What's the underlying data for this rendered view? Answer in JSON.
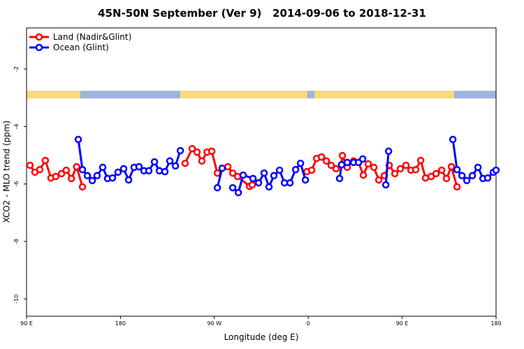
{
  "chart_data": {
    "type": "line",
    "title": "45N-50N September (Ver 9)   2014-09-06 to 2018-12-31",
    "xlabel": "Longitude (deg E)",
    "ylabel": "XCO2 - MLO trend (ppm)",
    "xlim": [
      90,
      540
    ],
    "xticks": [
      {
        "value": 90,
        "label": "90 E"
      },
      {
        "value": 180,
        "label": "180"
      },
      {
        "value": 270,
        "label": "90 W"
      },
      {
        "value": 360,
        "label": "0"
      },
      {
        "value": 450,
        "label": "90 E"
      },
      {
        "value": 540,
        "label": "180"
      }
    ],
    "ylim": [
      -10.6,
      -0.57
    ],
    "yticks": [
      -2,
      -4,
      -6,
      -8,
      -10
    ],
    "legend": "top-left",
    "series": [
      {
        "name": "Land (Nadir&Glint)",
        "color": "#ff0000",
        "x": [
          93.3,
          98,
          102.7,
          108,
          113.4,
          118,
          123.5,
          128,
          133,
          138,
          143.6,
          null,
          242,
          248.7,
          253.4,
          258,
          263,
          267.5,
          272.9,
          null,
          282.9,
          287.6,
          292.3,
          303.7,
          306.3,
          null,
          358.6,
          363.3,
          368,
          372.7,
          377.4,
          382,
          386.7,
          392,
          392.7,
          397.4,
          403.5,
          408.2,
          412.8,
          417.5,
          422.9,
          427.6,
          433,
          437.6,
          443,
          448.3,
          453.7,
          458.4,
          463,
          467.8,
          472.4,
          477.8,
          482.5,
          487.9,
          492.5,
          497.2,
          502.6
        ],
        "values": [
          -5.35,
          -5.59,
          -5.5,
          -5.18,
          -5.79,
          -5.74,
          -5.64,
          -5.52,
          -5.81,
          -5.4,
          -6.1,
          null,
          -5.28,
          -4.77,
          -4.89,
          -5.2,
          -4.89,
          -4.86,
          -5.62,
          null,
          -5.4,
          -5.62,
          -5.74,
          -6.08,
          -6.03,
          null,
          -5.57,
          -5.52,
          -5.11,
          -5.06,
          -5.2,
          -5.35,
          -5.47,
          -5.33,
          -5.01,
          -5.42,
          -5.2,
          -5.25,
          -5.69,
          -5.3,
          -5.42,
          -5.86,
          -5.71,
          -5.35,
          -5.64,
          -5.47,
          -5.35,
          -5.52,
          -5.5,
          -5.18,
          -5.79,
          -5.74,
          -5.64,
          -5.52,
          -5.81,
          -5.4,
          -6.1
        ]
      },
      {
        "name": "Ocean (Glint)",
        "color": "#0000ff",
        "x": [
          139.6,
          143.6,
          148.3,
          153,
          157.6,
          163,
          167.7,
          172.4,
          177.7,
          183.1,
          187.8,
          193.1,
          197.8,
          202.5,
          207.2,
          212.6,
          217.3,
          222.6,
          227.3,
          232.7,
          237.4,
          null,
          272.9,
          277.5,
          null,
          287.6,
          293,
          297.6,
          307,
          312.4,
          317.7,
          322.4,
          327.1,
          332.5,
          337.2,
          342.5,
          347.9,
          352.6,
          357.3,
          null,
          390,
          392,
          397.4,
          403.5,
          408.2,
          412.2,
          null,
          434.3,
          437,
          null,
          498.6,
          502.6,
          507.3,
          512,
          517.3,
          522.7,
          527.4,
          532,
          537.4,
          540
        ],
        "values": [
          -4.45,
          -5.5,
          -5.71,
          -5.88,
          -5.71,
          -5.42,
          -5.81,
          -5.79,
          -5.59,
          -5.47,
          -5.86,
          -5.42,
          -5.4,
          -5.54,
          -5.54,
          -5.23,
          -5.54,
          -5.57,
          -5.2,
          -5.37,
          -4.84,
          null,
          -6.13,
          -5.45,
          null,
          -6.13,
          -6.3,
          -5.69,
          -5.81,
          -5.96,
          -5.62,
          -6.1,
          -5.71,
          -5.52,
          -5.96,
          -5.96,
          -5.5,
          -5.28,
          -5.86,
          null,
          -5.81,
          -5.33,
          -5.25,
          -5.25,
          -5.25,
          -5.13,
          null,
          -6.03,
          -4.86,
          null,
          -4.45,
          -5.5,
          -5.71,
          -5.88,
          -5.71,
          -5.42,
          -5.81,
          -5.79,
          -5.59,
          -5.52
        ]
      }
    ]
  }
}
